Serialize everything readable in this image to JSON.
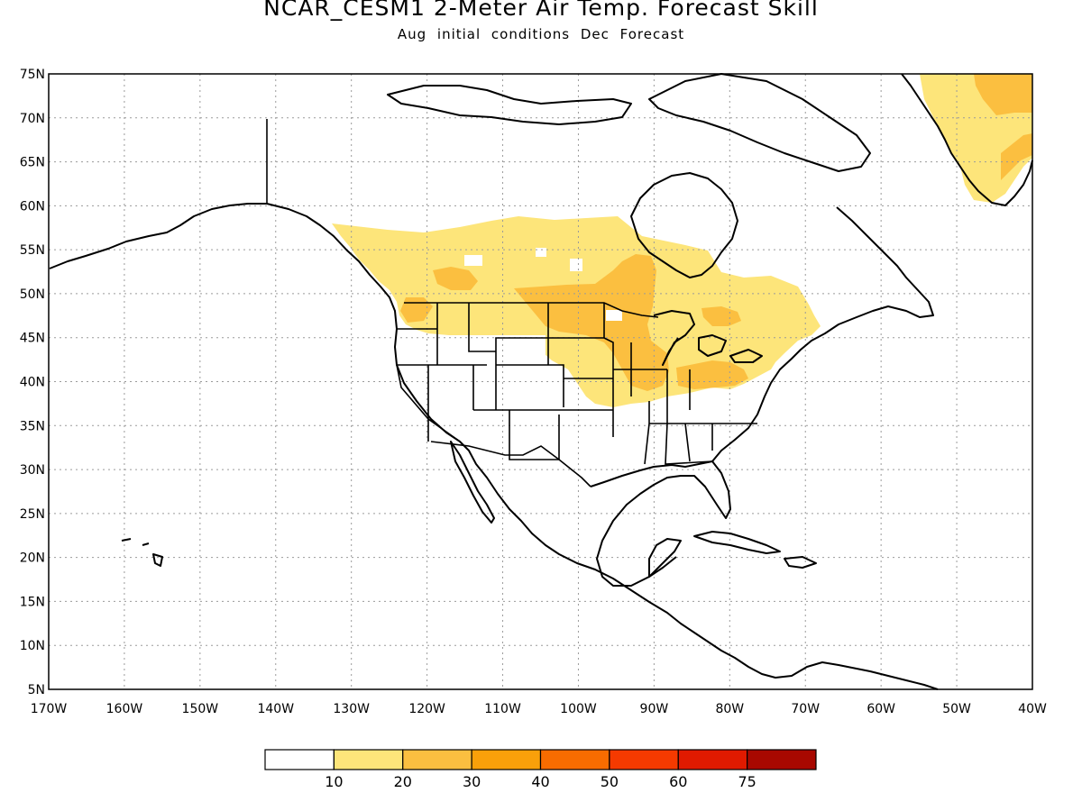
{
  "title": "NCAR_CESM1 2-Meter Air Temp. Forecast Skill",
  "subtitle": "Aug initial conditions  Dec Forecast",
  "lat_ticks": [
    "75N",
    "70N",
    "65N",
    "60N",
    "55N",
    "50N",
    "45N",
    "40N",
    "35N",
    "30N",
    "25N",
    "20N",
    "15N",
    "10N",
    "5N"
  ],
  "lon_ticks": [
    "170W",
    "160W",
    "150W",
    "140W",
    "130W",
    "120W",
    "110W",
    "100W",
    "90W",
    "80W",
    "70W",
    "60W",
    "50W",
    "40W"
  ],
  "legend": {
    "colors": [
      "#ffffff",
      "#fde57a",
      "#fbbf40",
      "#f9a00a",
      "#f86c00",
      "#f53a00",
      "#e01a00",
      "#a80800"
    ],
    "labels": [
      "10",
      "20",
      "30",
      "40",
      "50",
      "60",
      "75"
    ]
  },
  "skill_colors": {
    "level_10_20": "#fde57a",
    "level_20_30": "#fbbf40"
  }
}
